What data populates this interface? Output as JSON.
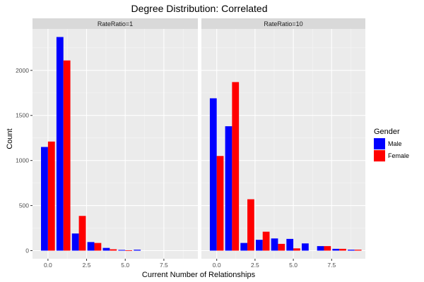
{
  "chart_data": {
    "type": "bar",
    "title": "Degree Distribution: Correlated",
    "xlabel": "Current Number of Relationships",
    "ylabel": "Count",
    "x_ticks": [
      0.0,
      2.5,
      5.0,
      7.5
    ],
    "x_tick_labels": [
      "0.0",
      "2.5",
      "5.0",
      "7.5"
    ],
    "xlim": [
      -1,
      9.7
    ],
    "y_ticks": [
      0,
      500,
      1000,
      1500,
      2000
    ],
    "y_tick_labels": [
      "0",
      "500",
      "1000",
      "1500",
      "2000"
    ],
    "ylim": [
      -90,
      2460
    ],
    "grid": true,
    "legend": {
      "title": "Gender",
      "position": "right",
      "entries": [
        {
          "name": "Male",
          "color": "#0000ff"
        },
        {
          "name": "Female",
          "color": "#ff0000"
        }
      ]
    },
    "panels": [
      {
        "strip": "RateRatio=1",
        "x": [
          0,
          1,
          2,
          3,
          4,
          5,
          6
        ],
        "series": [
          {
            "name": "Male",
            "color": "#0000ff",
            "values": [
              1150,
              2370,
              190,
              95,
              30,
              8,
              10
            ]
          },
          {
            "name": "Female",
            "color": "#ff0000",
            "values": [
              1210,
              2110,
              385,
              85,
              15,
              3,
              0
            ]
          }
        ]
      },
      {
        "strip": "RateRatio=10",
        "x": [
          0,
          1,
          2,
          3,
          4,
          5,
          6,
          7,
          8,
          9
        ],
        "series": [
          {
            "name": "Male",
            "color": "#0000ff",
            "values": [
              1690,
              1380,
              85,
              120,
              135,
              130,
              80,
              50,
              20,
              10
            ]
          },
          {
            "name": "Female",
            "color": "#ff0000",
            "values": [
              1050,
              1870,
              570,
              210,
              75,
              25,
              0,
              50,
              20,
              10
            ]
          }
        ]
      }
    ]
  }
}
